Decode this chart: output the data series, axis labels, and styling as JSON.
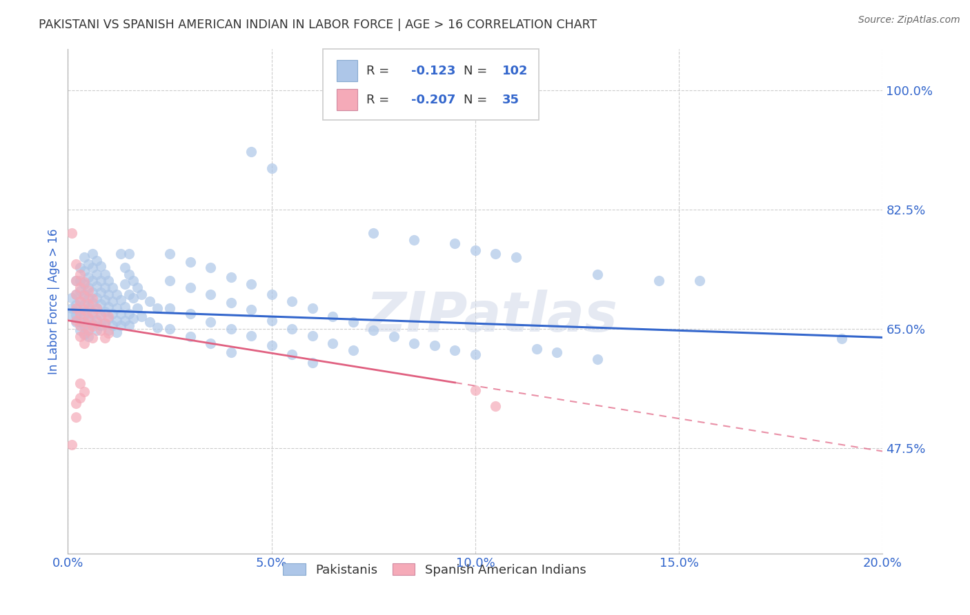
{
  "title": "PAKISTANI VS SPANISH AMERICAN INDIAN IN LABOR FORCE | AGE > 16 CORRELATION CHART",
  "source": "Source: ZipAtlas.com",
  "ylabel_text": "In Labor Force | Age > 16",
  "xlim": [
    0.0,
    0.2
  ],
  "ylim": [
    0.32,
    1.06
  ],
  "yticks": [
    0.475,
    0.65,
    0.825,
    1.0
  ],
  "ytick_labels": [
    "47.5%",
    "65.0%",
    "82.5%",
    "100.0%"
  ],
  "xticks": [
    0.0,
    0.05,
    0.1,
    0.15,
    0.2
  ],
  "xtick_labels": [
    "0.0%",
    "5.0%",
    "10.0%",
    "15.0%",
    "20.0%"
  ],
  "blue_R": -0.123,
  "blue_N": 102,
  "pink_R": -0.207,
  "pink_N": 35,
  "blue_color": "#adc6e8",
  "pink_color": "#f5aab8",
  "blue_line_color": "#3366cc",
  "pink_line_color": "#e06080",
  "blue_scatter": [
    [
      0.001,
      0.695
    ],
    [
      0.001,
      0.68
    ],
    [
      0.001,
      0.67
    ],
    [
      0.002,
      0.72
    ],
    [
      0.002,
      0.7
    ],
    [
      0.002,
      0.685
    ],
    [
      0.002,
      0.67
    ],
    [
      0.002,
      0.66
    ],
    [
      0.003,
      0.74
    ],
    [
      0.003,
      0.72
    ],
    [
      0.003,
      0.705
    ],
    [
      0.003,
      0.69
    ],
    [
      0.003,
      0.675
    ],
    [
      0.003,
      0.66
    ],
    [
      0.003,
      0.648
    ],
    [
      0.004,
      0.755
    ],
    [
      0.004,
      0.735
    ],
    [
      0.004,
      0.715
    ],
    [
      0.004,
      0.7
    ],
    [
      0.004,
      0.685
    ],
    [
      0.004,
      0.67
    ],
    [
      0.004,
      0.655
    ],
    [
      0.004,
      0.642
    ],
    [
      0.005,
      0.745
    ],
    [
      0.005,
      0.725
    ],
    [
      0.005,
      0.71
    ],
    [
      0.005,
      0.695
    ],
    [
      0.005,
      0.68
    ],
    [
      0.005,
      0.665
    ],
    [
      0.005,
      0.65
    ],
    [
      0.005,
      0.638
    ],
    [
      0.006,
      0.76
    ],
    [
      0.006,
      0.74
    ],
    [
      0.006,
      0.72
    ],
    [
      0.006,
      0.703
    ],
    [
      0.006,
      0.688
    ],
    [
      0.006,
      0.672
    ],
    [
      0.006,
      0.657
    ],
    [
      0.007,
      0.75
    ],
    [
      0.007,
      0.73
    ],
    [
      0.007,
      0.712
    ],
    [
      0.007,
      0.695
    ],
    [
      0.007,
      0.68
    ],
    [
      0.007,
      0.663
    ],
    [
      0.007,
      0.648
    ],
    [
      0.008,
      0.742
    ],
    [
      0.008,
      0.72
    ],
    [
      0.008,
      0.703
    ],
    [
      0.008,
      0.686
    ],
    [
      0.008,
      0.67
    ],
    [
      0.008,
      0.655
    ],
    [
      0.009,
      0.73
    ],
    [
      0.009,
      0.71
    ],
    [
      0.009,
      0.692
    ],
    [
      0.009,
      0.675
    ],
    [
      0.009,
      0.658
    ],
    [
      0.01,
      0.72
    ],
    [
      0.01,
      0.7
    ],
    [
      0.01,
      0.682
    ],
    [
      0.01,
      0.665
    ],
    [
      0.01,
      0.648
    ],
    [
      0.011,
      0.71
    ],
    [
      0.011,
      0.69
    ],
    [
      0.011,
      0.672
    ],
    [
      0.011,
      0.655
    ],
    [
      0.012,
      0.7
    ],
    [
      0.012,
      0.68
    ],
    [
      0.012,
      0.662
    ],
    [
      0.012,
      0.645
    ],
    [
      0.013,
      0.76
    ],
    [
      0.013,
      0.692
    ],
    [
      0.013,
      0.672
    ],
    [
      0.013,
      0.655
    ],
    [
      0.014,
      0.74
    ],
    [
      0.014,
      0.715
    ],
    [
      0.014,
      0.682
    ],
    [
      0.014,
      0.662
    ],
    [
      0.015,
      0.76
    ],
    [
      0.015,
      0.73
    ],
    [
      0.015,
      0.7
    ],
    [
      0.015,
      0.672
    ],
    [
      0.015,
      0.655
    ],
    [
      0.016,
      0.72
    ],
    [
      0.016,
      0.695
    ],
    [
      0.016,
      0.665
    ],
    [
      0.017,
      0.71
    ],
    [
      0.017,
      0.68
    ],
    [
      0.018,
      0.7
    ],
    [
      0.018,
      0.668
    ],
    [
      0.02,
      0.69
    ],
    [
      0.02,
      0.66
    ],
    [
      0.022,
      0.68
    ],
    [
      0.022,
      0.652
    ],
    [
      0.025,
      0.76
    ],
    [
      0.025,
      0.72
    ],
    [
      0.025,
      0.68
    ],
    [
      0.025,
      0.65
    ],
    [
      0.03,
      0.748
    ],
    [
      0.03,
      0.71
    ],
    [
      0.03,
      0.672
    ],
    [
      0.03,
      0.638
    ],
    [
      0.035,
      0.74
    ],
    [
      0.035,
      0.7
    ],
    [
      0.035,
      0.66
    ],
    [
      0.035,
      0.628
    ],
    [
      0.04,
      0.725
    ],
    [
      0.04,
      0.688
    ],
    [
      0.04,
      0.65
    ],
    [
      0.04,
      0.615
    ],
    [
      0.045,
      0.91
    ],
    [
      0.045,
      0.715
    ],
    [
      0.045,
      0.678
    ],
    [
      0.045,
      0.64
    ],
    [
      0.05,
      0.885
    ],
    [
      0.05,
      0.7
    ],
    [
      0.05,
      0.662
    ],
    [
      0.05,
      0.625
    ],
    [
      0.055,
      0.69
    ],
    [
      0.055,
      0.65
    ],
    [
      0.055,
      0.612
    ],
    [
      0.06,
      0.68
    ],
    [
      0.06,
      0.64
    ],
    [
      0.06,
      0.6
    ],
    [
      0.065,
      0.668
    ],
    [
      0.065,
      0.628
    ],
    [
      0.07,
      0.66
    ],
    [
      0.07,
      0.618
    ],
    [
      0.075,
      0.79
    ],
    [
      0.075,
      0.648
    ],
    [
      0.08,
      0.638
    ],
    [
      0.085,
      0.78
    ],
    [
      0.085,
      0.628
    ],
    [
      0.09,
      0.625
    ],
    [
      0.095,
      0.775
    ],
    [
      0.095,
      0.618
    ],
    [
      0.1,
      0.765
    ],
    [
      0.1,
      0.612
    ],
    [
      0.105,
      0.76
    ],
    [
      0.11,
      0.755
    ],
    [
      0.115,
      0.62
    ],
    [
      0.12,
      0.615
    ],
    [
      0.13,
      0.73
    ],
    [
      0.13,
      0.605
    ],
    [
      0.145,
      0.72
    ],
    [
      0.155,
      0.72
    ],
    [
      0.19,
      0.635
    ]
  ],
  "pink_scatter": [
    [
      0.001,
      0.79
    ],
    [
      0.002,
      0.745
    ],
    [
      0.002,
      0.72
    ],
    [
      0.002,
      0.7
    ],
    [
      0.002,
      0.68
    ],
    [
      0.002,
      0.662
    ],
    [
      0.003,
      0.73
    ],
    [
      0.003,
      0.71
    ],
    [
      0.003,
      0.69
    ],
    [
      0.003,
      0.672
    ],
    [
      0.003,
      0.655
    ],
    [
      0.003,
      0.638
    ],
    [
      0.004,
      0.718
    ],
    [
      0.004,
      0.698
    ],
    [
      0.004,
      0.678
    ],
    [
      0.004,
      0.66
    ],
    [
      0.004,
      0.643
    ],
    [
      0.004,
      0.628
    ],
    [
      0.005,
      0.706
    ],
    [
      0.005,
      0.686
    ],
    [
      0.005,
      0.666
    ],
    [
      0.005,
      0.648
    ],
    [
      0.006,
      0.694
    ],
    [
      0.006,
      0.674
    ],
    [
      0.006,
      0.654
    ],
    [
      0.006,
      0.636
    ],
    [
      0.007,
      0.68
    ],
    [
      0.007,
      0.66
    ],
    [
      0.008,
      0.67
    ],
    [
      0.008,
      0.648
    ],
    [
      0.009,
      0.658
    ],
    [
      0.009,
      0.636
    ],
    [
      0.01,
      0.668
    ],
    [
      0.01,
      0.644
    ],
    [
      0.001,
      0.48
    ],
    [
      0.002,
      0.54
    ],
    [
      0.002,
      0.52
    ],
    [
      0.003,
      0.57
    ],
    [
      0.003,
      0.548
    ],
    [
      0.004,
      0.558
    ],
    [
      0.1,
      0.56
    ],
    [
      0.105,
      0.536
    ]
  ],
  "watermark": "ZIPatlas",
  "background_color": "#ffffff",
  "grid_color": "#cccccc",
  "title_color": "#333333",
  "tick_label_color": "#3366cc",
  "legend_text_color": "#3366cc"
}
